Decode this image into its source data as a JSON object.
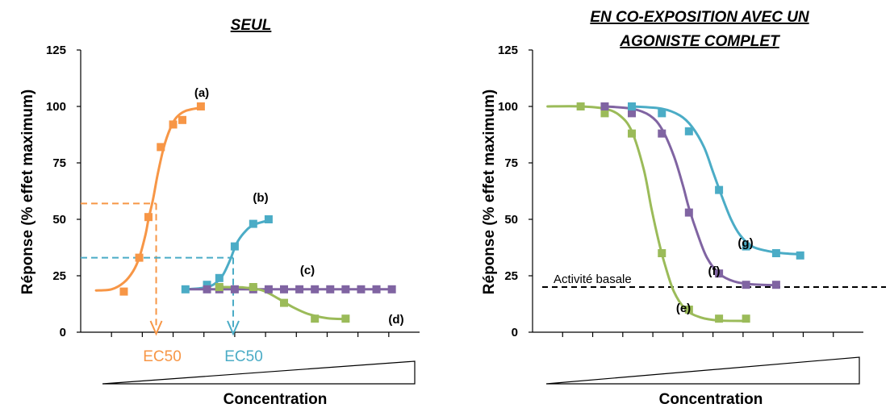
{
  "colors": {
    "orange": "#f79646",
    "blue": "#4bacc6",
    "purple": "#8064a2",
    "green": "#9bbb59",
    "black": "#000000"
  },
  "chart_data": [
    {
      "type": "line",
      "title": "SEUL",
      "ylabel": "Réponse (% effet maximum)",
      "xlabel": "Concentration",
      "ylim": [
        0,
        125
      ],
      "yticks": [
        "0",
        "25",
        "50",
        "75",
        "100",
        "125"
      ],
      "x_tick_count": 10,
      "x_ticks_labeled": false,
      "grid": false,
      "legend": "none",
      "series": [
        {
          "name": "(a)",
          "color": "orange",
          "points": [
            [
              1.4,
              18
            ],
            [
              1.9,
              33
            ],
            [
              2.2,
              51
            ],
            [
              2.6,
              82
            ],
            [
              3.0,
              92
            ],
            [
              3.3,
              94
            ],
            [
              3.9,
              100
            ]
          ],
          "curve": [
            [
              0.5,
              18.5
            ],
            [
              1.0,
              19
            ],
            [
              1.4,
              22
            ],
            [
              1.7,
              27
            ],
            [
              1.9,
              33
            ],
            [
              2.1,
              43
            ],
            [
              2.2,
              50
            ],
            [
              2.35,
              59
            ],
            [
              2.5,
              70
            ],
            [
              2.7,
              82
            ],
            [
              2.9,
              90
            ],
            [
              3.1,
              95
            ],
            [
              3.4,
              98
            ],
            [
              3.9,
              99.5
            ]
          ]
        },
        {
          "name": "(b)",
          "color": "blue",
          "points": [
            [
              3.4,
              19
            ],
            [
              4.1,
              21
            ],
            [
              4.5,
              24
            ],
            [
              5.0,
              38
            ],
            [
              5.6,
              48
            ],
            [
              6.1,
              50
            ]
          ],
          "curve": [
            [
              3.4,
              19
            ],
            [
              3.9,
              19.5
            ],
            [
              4.3,
              21
            ],
            [
              4.6,
              25
            ],
            [
              4.85,
              32
            ],
            [
              5.05,
              39
            ],
            [
              5.3,
              44
            ],
            [
              5.6,
              47.5
            ],
            [
              6.1,
              49.5
            ]
          ]
        },
        {
          "name": "(c)",
          "color": "purple",
          "points": [
            [
              4.1,
              19
            ],
            [
              4.5,
              19
            ],
            [
              5.0,
              19
            ],
            [
              5.6,
              19
            ],
            [
              6.1,
              19
            ],
            [
              6.6,
              19
            ],
            [
              7.1,
              19
            ],
            [
              7.6,
              19
            ],
            [
              8.1,
              19
            ],
            [
              8.6,
              19
            ],
            [
              9.1,
              19
            ],
            [
              9.6,
              19
            ],
            [
              10.1,
              19
            ]
          ],
          "curve": [
            [
              3.4,
              19
            ],
            [
              10.1,
              19
            ]
          ]
        },
        {
          "name": "(d)",
          "color": "green",
          "points": [
            [
              4.5,
              20
            ],
            [
              5.6,
              20
            ],
            [
              6.6,
              13
            ],
            [
              7.6,
              6
            ],
            [
              8.6,
              6
            ]
          ],
          "curve": [
            [
              4.5,
              20
            ],
            [
              5.3,
              19.8
            ],
            [
              5.9,
              18.5
            ],
            [
              6.4,
              15
            ],
            [
              6.9,
              11
            ],
            [
              7.4,
              8
            ],
            [
              8.0,
              6.2
            ],
            [
              8.6,
              5.8
            ]
          ]
        }
      ],
      "annotations": {
        "ec50_orange": {
          "text": "EC50",
          "color": "orange",
          "x": 2.45,
          "y": 57
        },
        "ec50_blue": {
          "text": "EC50",
          "color": "blue",
          "x": 4.95,
          "y": 33
        },
        "label_a": "(a)",
        "label_b": "(b)",
        "label_c": "(c)",
        "label_d": "(d)"
      }
    },
    {
      "type": "line",
      "title": "EN CO-EXPOSITION AVEC UN AGONISTE COMPLET",
      "title_lines": [
        "EN CO-EXPOSITION AVEC UN",
        "AGONISTE COMPLET"
      ],
      "ylabel": "Réponse (% effet maximum)",
      "xlabel": "Concentration",
      "ylim": [
        0,
        125
      ],
      "yticks": [
        "0",
        "25",
        "50",
        "75",
        "100",
        "125"
      ],
      "x_tick_count": 10,
      "x_ticks_labeled": false,
      "grid": false,
      "legend": "none",
      "baseline": {
        "label": "Activité basale",
        "y": 20
      },
      "series": [
        {
          "name": "(e)",
          "color": "green",
          "points": [
            [
              1.6,
              100
            ],
            [
              2.4,
              97
            ],
            [
              3.3,
              88
            ],
            [
              4.3,
              35
            ],
            [
              5.2,
              10
            ],
            [
              6.2,
              6
            ],
            [
              7.1,
              6
            ]
          ],
          "curve": [
            [
              0.5,
              100
            ],
            [
              1.6,
              100
            ],
            [
              2.4,
              99
            ],
            [
              2.9,
              96
            ],
            [
              3.3,
              89
            ],
            [
              3.7,
              72
            ],
            [
              3.95,
              55
            ],
            [
              4.2,
              40
            ],
            [
              4.4,
              30
            ],
            [
              4.7,
              18
            ],
            [
              5.1,
              10
            ],
            [
              5.6,
              6.5
            ],
            [
              6.2,
              5.2
            ],
            [
              7.1,
              5
            ]
          ]
        },
        {
          "name": "(f)",
          "color": "purple",
          "points": [
            [
              2.4,
              100
            ],
            [
              3.3,
              97
            ],
            [
              4.3,
              88
            ],
            [
              5.2,
              53
            ],
            [
              6.2,
              26
            ],
            [
              7.1,
              21
            ],
            [
              8.1,
              21
            ]
          ],
          "curve": [
            [
              2.4,
              100
            ],
            [
              3.3,
              99
            ],
            [
              3.9,
              96
            ],
            [
              4.3,
              90
            ],
            [
              4.7,
              78
            ],
            [
              5.0,
              65
            ],
            [
              5.2,
              55
            ],
            [
              5.5,
              43
            ],
            [
              5.8,
              33
            ],
            [
              6.2,
              26
            ],
            [
              6.7,
              22.5
            ],
            [
              7.3,
              21.2
            ],
            [
              8.1,
              20.8
            ]
          ]
        },
        {
          "name": "(g)",
          "color": "blue",
          "points": [
            [
              3.3,
              100
            ],
            [
              4.3,
              97
            ],
            [
              5.2,
              89
            ],
            [
              6.2,
              63
            ],
            [
              7.1,
              38
            ],
            [
              8.1,
              35
            ],
            [
              8.9,
              34
            ]
          ],
          "curve": [
            [
              3.3,
              100
            ],
            [
              4.3,
              99
            ],
            [
              4.9,
              96
            ],
            [
              5.3,
              91
            ],
            [
              5.7,
              82
            ],
            [
              6.0,
              71
            ],
            [
              6.3,
              60
            ],
            [
              6.6,
              50
            ],
            [
              6.9,
              43
            ],
            [
              7.3,
              38
            ],
            [
              7.8,
              36
            ],
            [
              8.3,
              35
            ],
            [
              8.9,
              34.5
            ]
          ]
        }
      ],
      "annotations": {
        "label_e": "(e)",
        "label_f": "(f)",
        "label_g": "(g)"
      }
    }
  ]
}
